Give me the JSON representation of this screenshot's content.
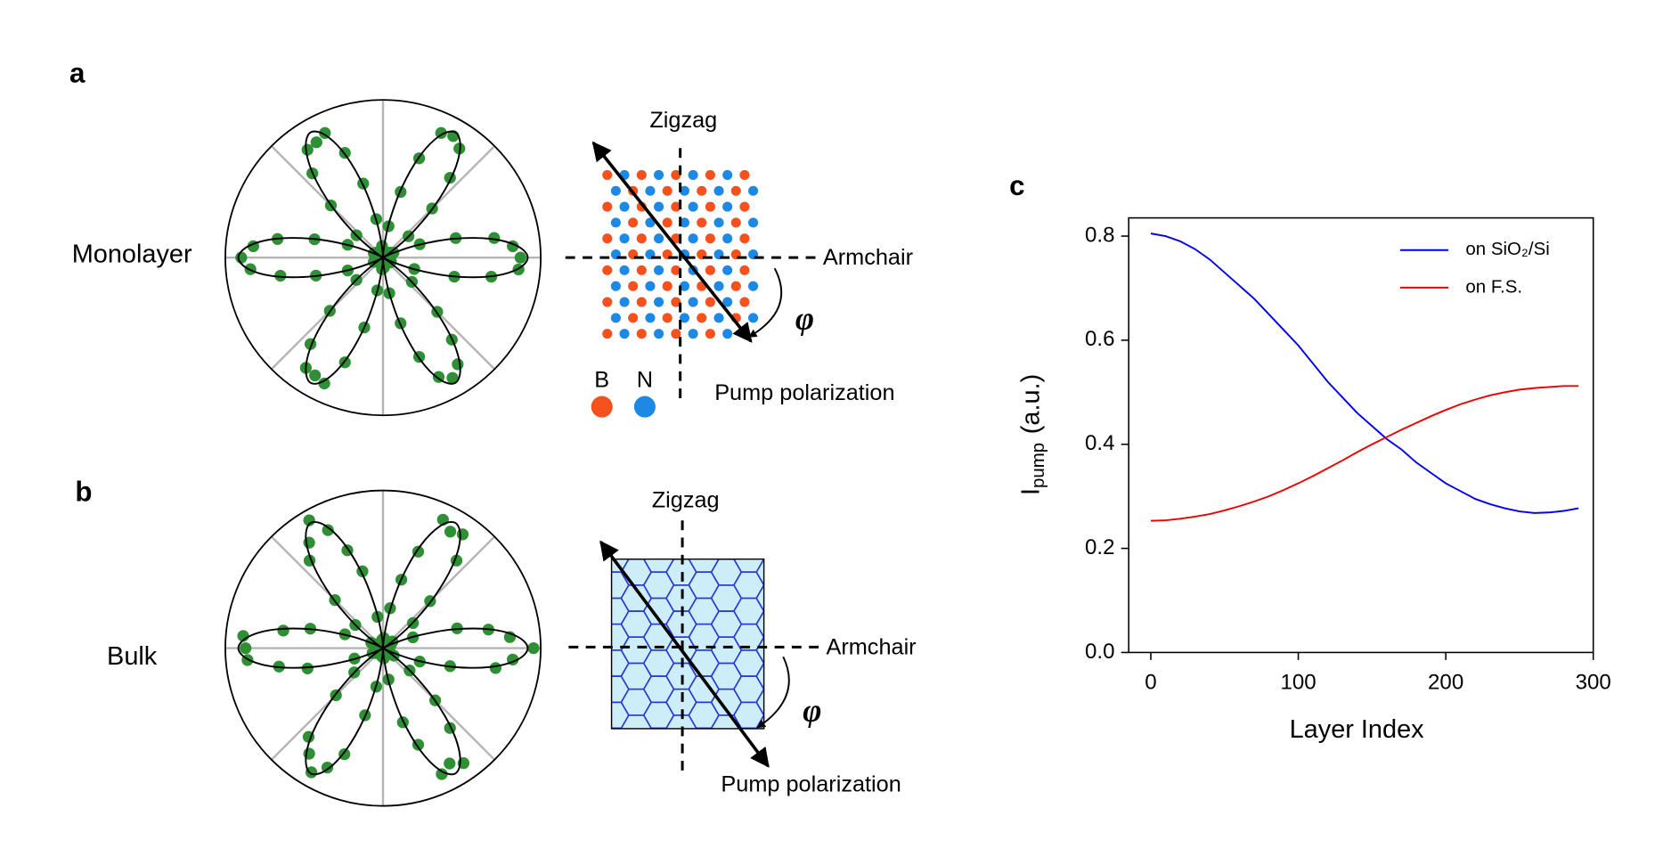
{
  "chart_data": [
    {
      "type": "polar",
      "panel": "a",
      "label": "Monolayer",
      "rlim": [
        0,
        1.09
      ],
      "dot_color": "#2f8f34",
      "line_color": "#000000",
      "theta": [
        0,
        5,
        10,
        15,
        20,
        25,
        30,
        35,
        40,
        45,
        50,
        55,
        60,
        65,
        70,
        75,
        80,
        85,
        90,
        95,
        100,
        105,
        110,
        115,
        120,
        125,
        130,
        135,
        140,
        145,
        150,
        155,
        160,
        165,
        170,
        175,
        180,
        185,
        190,
        195,
        200,
        205,
        210,
        215,
        220,
        225,
        230,
        235,
        240,
        245,
        250,
        255,
        260,
        265,
        270,
        275,
        280,
        285,
        290,
        295,
        300,
        305,
        310,
        315,
        320,
        325,
        330,
        335,
        340,
        345,
        350,
        355
      ],
      "fit": [
        1,
        0.93,
        0.75,
        0.5,
        0.25,
        0.07,
        0,
        0.07,
        0.25,
        0.5,
        0.75,
        0.93,
        1,
        0.93,
        0.75,
        0.5,
        0.25,
        0.07,
        0,
        0.07,
        0.25,
        0.5,
        0.75,
        0.93,
        1,
        0.93,
        0.75,
        0.5,
        0.25,
        0.07,
        0,
        0.07,
        0.25,
        0.5,
        0.75,
        0.93,
        1,
        0.93,
        0.75,
        0.5,
        0.25,
        0.07,
        0,
        0.07,
        0.25,
        0.5,
        0.75,
        0.93,
        1,
        0.93,
        0.75,
        0.5,
        0.25,
        0.07,
        0,
        0.07,
        0.25,
        0.5,
        0.75,
        0.93,
        1,
        0.93,
        0.75,
        0.5,
        0.25,
        0.07,
        0,
        0.07,
        0.25,
        0.5,
        0.75,
        0.93
      ],
      "measured": [
        0.95,
        0.9,
        0.78,
        0.52,
        0.27,
        0.08,
        0.02,
        0.06,
        0.23,
        0.48,
        0.72,
        0.92,
        0.97,
        0.95,
        0.73,
        0.47,
        0.22,
        0.05,
        0.01,
        0.08,
        0.27,
        0.53,
        0.77,
        0.95,
        0.92,
        0.91,
        0.76,
        0.51,
        0.24,
        0.06,
        0.02,
        0.07,
        0.26,
        0.49,
        0.74,
        0.9,
        0.98,
        0.92,
        0.72,
        0.48,
        0.26,
        0.07,
        0.01,
        0.05,
        0.24,
        0.52,
        0.78,
        0.93,
        0.94,
        0.96,
        0.77,
        0.5,
        0.23,
        0.08,
        0.02,
        0.07,
        0.25,
        0.47,
        0.73,
        0.91,
        0.96,
        0.9,
        0.74,
        0.53,
        0.26,
        0.06,
        0.01,
        0.06,
        0.23,
        0.51,
        0.76,
        0.94
      ],
      "schematic": {
        "style": "atoms",
        "zigzag": "Zigzag",
        "armchair": "Armchair",
        "angle": "φ",
        "pump": "Pump polarization",
        "legend": [
          {
            "name": "B",
            "color": "#f4511e"
          },
          {
            "name": "N",
            "color": "#1e88e5"
          }
        ]
      }
    },
    {
      "type": "polar",
      "panel": "b",
      "label": "Bulk",
      "rlim": [
        0,
        1.09
      ],
      "dot_color": "#2f8f34",
      "line_color": "#000000",
      "theta": [
        0,
        5,
        10,
        15,
        20,
        25,
        30,
        35,
        40,
        45,
        50,
        55,
        60,
        65,
        70,
        75,
        80,
        85,
        90,
        95,
        100,
        105,
        110,
        115,
        120,
        125,
        130,
        135,
        140,
        145,
        150,
        155,
        160,
        165,
        170,
        175,
        180,
        185,
        190,
        195,
        200,
        205,
        210,
        215,
        220,
        225,
        230,
        235,
        240,
        245,
        250,
        255,
        260,
        265,
        270,
        275,
        280,
        285,
        290,
        295,
        300,
        305,
        310,
        315,
        320,
        325,
        330,
        335,
        340,
        345,
        350,
        355
      ],
      "fit": [
        1,
        0.93,
        0.75,
        0.5,
        0.25,
        0.07,
        0,
        0.07,
        0.25,
        0.5,
        0.75,
        0.93,
        1,
        0.93,
        0.75,
        0.5,
        0.25,
        0.07,
        0,
        0.07,
        0.25,
        0.5,
        0.75,
        0.93,
        1,
        0.93,
        0.75,
        0.5,
        0.25,
        0.07,
        0,
        0.07,
        0.25,
        0.5,
        0.75,
        0.93,
        1,
        0.93,
        0.75,
        0.5,
        0.25,
        0.07,
        0,
        0.07,
        0.25,
        0.5,
        0.75,
        0.93,
        1,
        0.93,
        0.75,
        0.5,
        0.25,
        0.07,
        0,
        0.07,
        0.25,
        0.5,
        0.75,
        0.93,
        1,
        0.93,
        0.75,
        0.5,
        0.25,
        0.07,
        0,
        0.07,
        0.25,
        0.5,
        0.75,
        0.93
      ],
      "measured": [
        1.04,
        0.88,
        0.74,
        0.53,
        0.22,
        0.06,
        0.02,
        0.08,
        0.27,
        0.46,
        0.79,
        0.96,
        0.93,
        0.98,
        0.71,
        0.49,
        0.28,
        0.07,
        0.01,
        0.06,
        0.22,
        0.55,
        0.72,
        0.9,
        1.02,
        0.89,
        0.79,
        0.47,
        0.25,
        0.05,
        0.02,
        0.09,
        0.28,
        0.52,
        0.7,
        0.97,
        0.95,
        0.94,
        0.73,
        0.54,
        0.21,
        0.08,
        0.01,
        0.06,
        0.26,
        0.46,
        0.8,
        0.89,
        0.99,
        0.91,
        0.78,
        0.48,
        0.27,
        0.06,
        0.02,
        0.07,
        0.22,
        0.53,
        0.71,
        0.96,
        0.92,
        0.97,
        0.72,
        0.51,
        0.24,
        0.09,
        0.01,
        0.05,
        0.27,
        0.48,
        0.79,
        0.9
      ],
      "schematic": {
        "style": "hexagonal",
        "zigzag": "Zigzag",
        "armchair": "Armchair",
        "angle": "φ",
        "pump": "Pump polarization",
        "fill": "#cdeef8",
        "edge_color": "#2a3bd1"
      }
    },
    {
      "type": "line",
      "panel": "c",
      "xlabel": "Layer Index",
      "ylabel": {
        "main": "I",
        "sub": "pump",
        "rest": "(a.u.)"
      },
      "x": [
        0,
        10,
        20,
        30,
        40,
        50,
        60,
        70,
        80,
        90,
        100,
        110,
        120,
        130,
        140,
        150,
        160,
        170,
        180,
        190,
        200,
        210,
        220,
        230,
        240,
        250,
        260,
        270,
        280,
        290
      ],
      "series": [
        {
          "name": "on SiO₂/Si",
          "color": "#0000ee",
          "values": [
            0.805,
            0.8,
            0.79,
            0.775,
            0.755,
            0.73,
            0.705,
            0.68,
            0.65,
            0.62,
            0.59,
            0.555,
            0.52,
            0.49,
            0.46,
            0.435,
            0.41,
            0.39,
            0.365,
            0.345,
            0.325,
            0.31,
            0.295,
            0.285,
            0.277,
            0.271,
            0.268,
            0.269,
            0.272,
            0.277
          ]
        },
        {
          "name": "on F.S.",
          "color": "#ee0000",
          "values": [
            0.253,
            0.254,
            0.257,
            0.261,
            0.266,
            0.273,
            0.281,
            0.29,
            0.3,
            0.312,
            0.325,
            0.339,
            0.354,
            0.369,
            0.385,
            0.4,
            0.414,
            0.428,
            0.441,
            0.454,
            0.466,
            0.477,
            0.486,
            0.494,
            0.5,
            0.505,
            0.508,
            0.51,
            0.512,
            0.512
          ]
        }
      ],
      "xlim": [
        -15,
        300
      ],
      "ylim": [
        0,
        0.835
      ],
      "xticks": [
        0,
        100,
        200,
        300
      ],
      "yticks": [
        {
          "value": 0,
          "label": "0.0"
        },
        0.2,
        0.4,
        0.6,
        0.8
      ],
      "legend": "upper right"
    }
  ]
}
